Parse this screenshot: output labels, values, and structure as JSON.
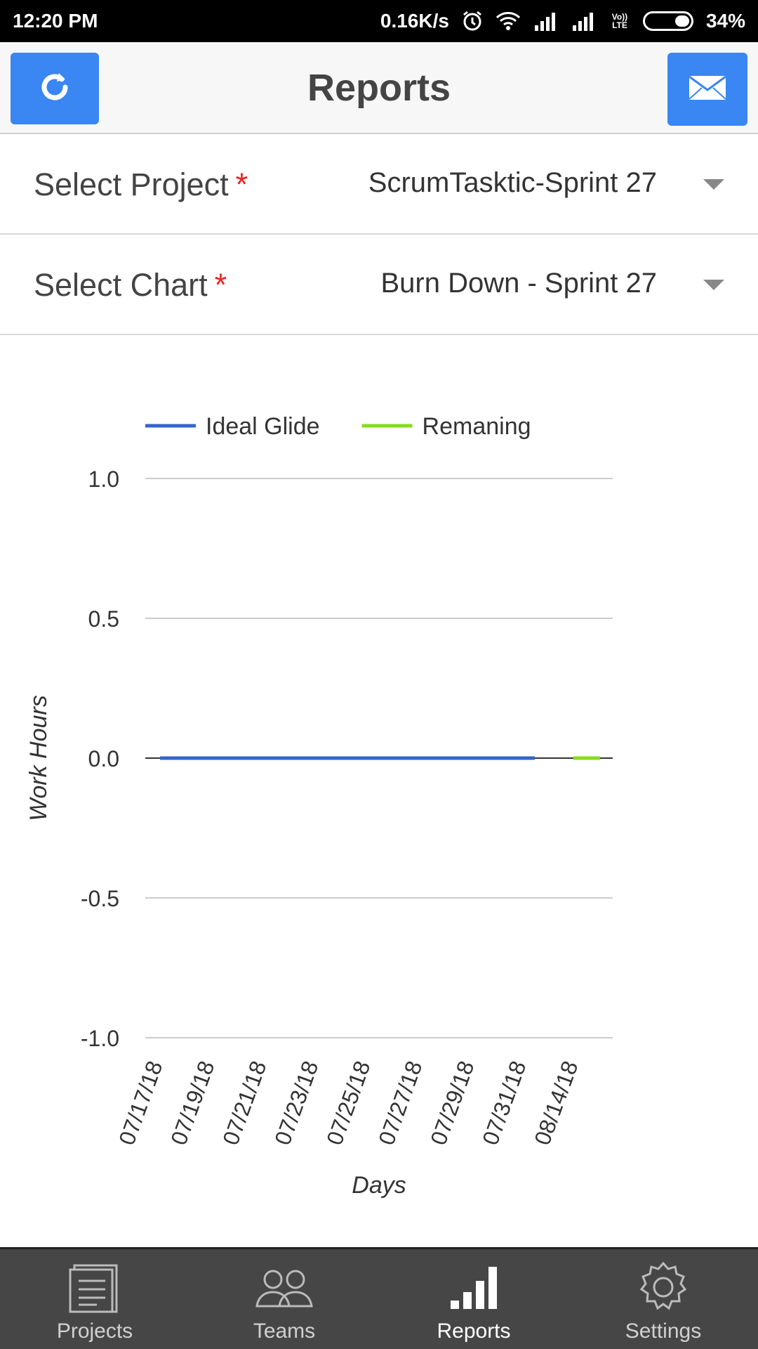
{
  "status_bar": {
    "time": "12:20 PM",
    "speed": "0.16K/s",
    "network_label": "Vo)) LTE",
    "battery": "34%",
    "battery_level": 0.34
  },
  "header": {
    "title": "Reports",
    "refresh_icon": "refresh-icon",
    "mail_icon": "mail-icon",
    "accent_color": "#3a86f2"
  },
  "selectors": {
    "project": {
      "label": "Select Project",
      "required_mark": "*",
      "value": "ScrumTasktic-Sprint 27"
    },
    "chart": {
      "label": "Select Chart",
      "required_mark": "*",
      "value": "Burn Down - Sprint 27"
    }
  },
  "chart_data": {
    "type": "line",
    "title": "",
    "xlabel": "Days",
    "ylabel": "Work Hours",
    "categories": [
      "07/17/18",
      "07/19/18",
      "07/21/18",
      "07/23/18",
      "07/25/18",
      "07/27/18",
      "07/29/18",
      "07/31/18",
      "08/14/18"
    ],
    "yticks": [
      "1.0",
      "0.5",
      "0.0",
      "-0.5",
      "-1.0"
    ],
    "ylim": [
      -1.0,
      1.0
    ],
    "legend_position": "top",
    "grid": true,
    "series": [
      {
        "name": "Ideal Glide",
        "color": "#3366cc",
        "values": [
          0,
          0,
          0,
          0,
          0,
          0,
          0,
          0,
          null
        ]
      },
      {
        "name": "Remaning",
        "color": "#86dc1c",
        "values": [
          null,
          null,
          null,
          null,
          null,
          null,
          null,
          null,
          0
        ]
      }
    ]
  },
  "bottom_nav": {
    "items": [
      {
        "label": "Projects",
        "icon": "projects-icon",
        "active": false
      },
      {
        "label": "Teams",
        "icon": "teams-icon",
        "active": false
      },
      {
        "label": "Reports",
        "icon": "reports-icon",
        "active": true
      },
      {
        "label": "Settings",
        "icon": "settings-icon",
        "active": false
      }
    ]
  }
}
